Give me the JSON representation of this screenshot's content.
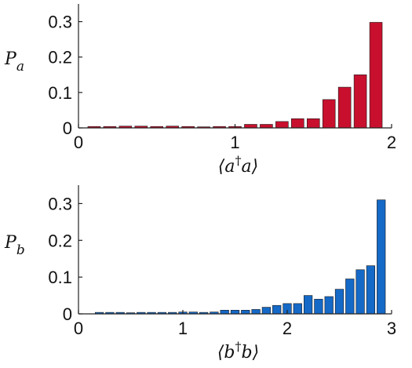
{
  "chart_data": [
    {
      "type": "bar",
      "xlabel_parts": [
        "⟨a",
        "†",
        "a⟩"
      ],
      "ylabel_parts": [
        "P",
        "a"
      ],
      "xlim": [
        0,
        2
      ],
      "ylim": [
        0,
        0.35
      ],
      "xticks": [
        0,
        1,
        2
      ],
      "yticks": [
        0,
        0.1,
        0.2,
        0.3
      ],
      "ytick_labels": [
        "0",
        "0.1",
        "0.2",
        "0.3"
      ],
      "bar_width": 0.08,
      "bar_color": "#c8102e",
      "x": [
        0.1,
        0.2,
        0.3,
        0.4,
        0.5,
        0.6,
        0.7,
        0.8,
        0.9,
        1.0,
        1.1,
        1.2,
        1.3,
        1.4,
        1.5,
        1.6,
        1.7,
        1.8,
        1.9
      ],
      "values": [
        0.004,
        0.004,
        0.005,
        0.005,
        0.004,
        0.005,
        0.004,
        0.003,
        0.004,
        0.004,
        0.01,
        0.01,
        0.018,
        0.026,
        0.026,
        0.08,
        0.115,
        0.15,
        0.298
      ]
    },
    {
      "type": "bar",
      "xlabel_parts": [
        "⟨b",
        "†",
        "b⟩"
      ],
      "ylabel_parts": [
        "P",
        "b"
      ],
      "xlim": [
        0,
        3
      ],
      "ylim": [
        0,
        0.35
      ],
      "xticks": [
        0,
        1,
        2,
        3
      ],
      "yticks": [
        0,
        0.1,
        0.2,
        0.3
      ],
      "ytick_labels": [
        "0",
        "0.1",
        "0.2",
        "0.3"
      ],
      "bar_width": 0.08,
      "bar_color": "#1569c7",
      "x": [
        0.2,
        0.3,
        0.4,
        0.5,
        0.6,
        0.7,
        0.8,
        0.9,
        1.0,
        1.1,
        1.2,
        1.3,
        1.4,
        1.5,
        1.6,
        1.7,
        1.8,
        1.9,
        2.0,
        2.1,
        2.2,
        2.3,
        2.4,
        2.5,
        2.6,
        2.7,
        2.8,
        2.9
      ],
      "values": [
        0.004,
        0.004,
        0.004,
        0.003,
        0.004,
        0.004,
        0.004,
        0.004,
        0.005,
        0.005,
        0.004,
        0.005,
        0.01,
        0.01,
        0.01,
        0.012,
        0.018,
        0.023,
        0.028,
        0.028,
        0.05,
        0.04,
        0.047,
        0.067,
        0.095,
        0.12,
        0.131,
        0.31
      ]
    }
  ]
}
